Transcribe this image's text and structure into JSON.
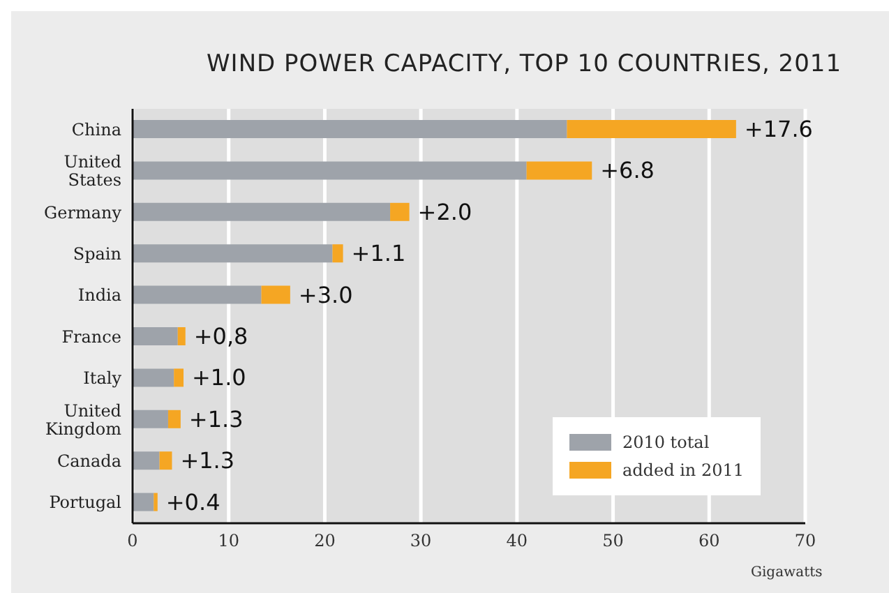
{
  "chart_data": {
    "type": "bar",
    "orientation": "horizontal",
    "stacked": true,
    "title": "WIND POWER CAPACITY, TOP 10 COUNTRIES, 2011",
    "xlabel": "Gigawatts",
    "categories": [
      "China",
      "United States",
      "Germany",
      "Spain",
      "India",
      "France",
      "Italy",
      "United Kingdom",
      "Canada",
      "Portugal"
    ],
    "series": [
      {
        "name": "2010 total",
        "color": "#9ea3aa",
        "values": [
          45.2,
          41,
          26.8,
          20.8,
          13.4,
          4.7,
          4.3,
          3.7,
          2.8,
          2.2
        ]
      },
      {
        "name": "added in 2011",
        "color": "#f5a623",
        "values": [
          17.6,
          6.8,
          2.0,
          1.1,
          3.0,
          0.8,
          1.0,
          1.3,
          1.3,
          0.4
        ],
        "value_labels": [
          "+17.6",
          "+6.8",
          "+2.0",
          "+1.1",
          "+3.0",
          "+0,8",
          "+1.0",
          "+1.3",
          "+1.3",
          "+0.4"
        ]
      }
    ],
    "xlim": [
      0,
      70
    ],
    "xticks": [
      0,
      10,
      20,
      30,
      40,
      50,
      60,
      70
    ],
    "grid": "x",
    "legend": "bottom right"
  }
}
